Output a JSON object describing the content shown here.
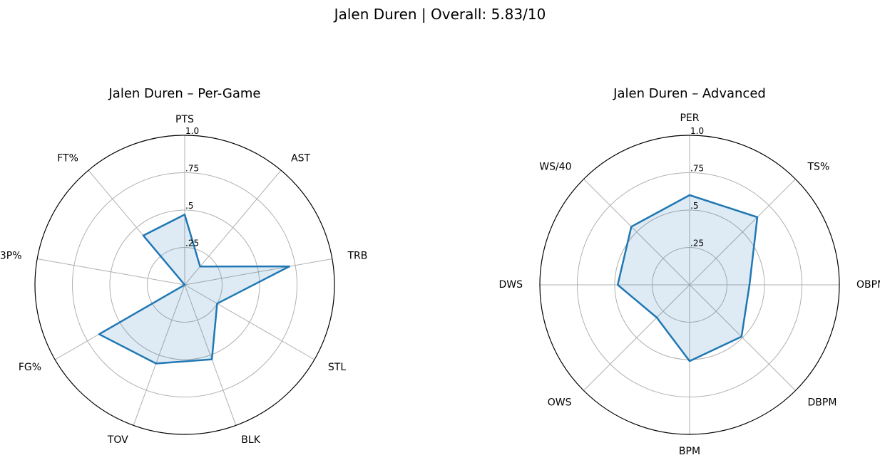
{
  "figure": {
    "suptitle": "Jalen Duren | Overall: 5.83/10"
  },
  "chart_data": [
    {
      "type": "radar",
      "title": "Jalen Duren – Per-Game",
      "axes": [
        "PTS",
        "AST",
        "TRB",
        "STL",
        "BLK",
        "TOV",
        "FG%",
        "3P%",
        "FT%"
      ],
      "values": [
        0.47,
        0.16,
        0.71,
        0.25,
        0.53,
        0.56,
        0.66,
        0.0,
        0.43
      ],
      "rlim": [
        0,
        1.0
      ],
      "rticks": [
        0.25,
        0.5,
        0.75,
        1.0
      ],
      "rtick_labels": [
        ".25",
        ".5",
        ".75",
        "1.0"
      ],
      "grid": true,
      "color": "#1f77b4",
      "fill_color": "#1f77b4"
    },
    {
      "type": "radar",
      "title": "Jalen Duren – Advanced",
      "axes": [
        "PER",
        "TS%",
        "OBPM",
        "DBPM",
        "BPM",
        "OWS",
        "DWS",
        "WS/40"
      ],
      "values": [
        0.6,
        0.64,
        0.4,
        0.49,
        0.51,
        0.31,
        0.48,
        0.55
      ],
      "rlim": [
        0,
        1.0
      ],
      "rticks": [
        0.25,
        0.5,
        0.75,
        1.0
      ],
      "rtick_labels": [
        ".25",
        ".5",
        ".75",
        "1.0"
      ],
      "grid": true,
      "color": "#1f77b4",
      "fill_color": "#1f77b4"
    }
  ]
}
